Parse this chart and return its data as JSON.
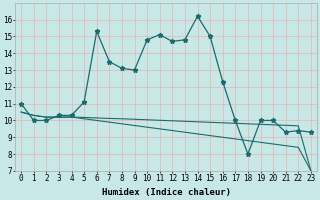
{
  "x": [
    0,
    1,
    2,
    3,
    4,
    5,
    6,
    7,
    8,
    9,
    10,
    11,
    12,
    13,
    14,
    15,
    16,
    17,
    18,
    19,
    20,
    21,
    22,
    23
  ],
  "line_main": [
    11,
    10,
    10,
    10.3,
    10.3,
    11.1,
    15.3,
    13.5,
    13.1,
    13.0,
    14.8,
    15.1,
    14.7,
    14.8,
    16.2,
    15.0,
    12.3,
    10.0,
    8.0,
    10.0,
    10.0,
    9.3,
    9.4,
    9.3
  ],
  "line_trend1": [
    10.5,
    10.3,
    10.2,
    10.2,
    10.2,
    10.18,
    10.15,
    10.12,
    10.1,
    10.07,
    10.04,
    10.01,
    9.98,
    9.95,
    9.92,
    9.89,
    9.86,
    9.83,
    9.8,
    9.77,
    9.74,
    9.71,
    9.68,
    7.0
  ],
  "line_trend2": [
    10.5,
    10.3,
    10.2,
    10.2,
    10.2,
    10.1,
    10.0,
    9.9,
    9.8,
    9.7,
    9.6,
    9.5,
    9.4,
    9.3,
    9.2,
    9.1,
    9.0,
    8.9,
    8.8,
    8.7,
    8.6,
    8.5,
    8.4,
    7.0
  ],
  "bg_color": "#c8e8e8",
  "grid_color_major": "#e8b0b0",
  "grid_color_minor": "#e8b0b0",
  "line_color": "#1a6b6b",
  "xlabel": "Humidex (Indice chaleur)",
  "ylim": [
    7,
    17
  ],
  "xlim": [
    -0.5,
    23.5
  ],
  "yticks": [
    7,
    8,
    9,
    10,
    11,
    12,
    13,
    14,
    15,
    16
  ],
  "xticks": [
    0,
    1,
    2,
    3,
    4,
    5,
    6,
    7,
    8,
    9,
    10,
    11,
    12,
    13,
    14,
    15,
    16,
    17,
    18,
    19,
    20,
    21,
    22,
    23
  ],
  "tick_fontsize": 5.5,
  "xlabel_fontsize": 6.5
}
